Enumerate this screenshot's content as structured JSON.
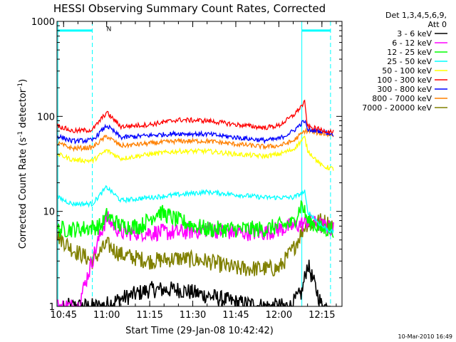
{
  "chart_data": {
    "type": "line",
    "title": "HESSI Observing Summary Count Rates, Corrected",
    "xlabel": "Start Time (29-Jan-08 10:42:42)",
    "ylabel": "Corrected Count Rate (s-1 detector-1)",
    "ylabel_parts": {
      "main": "Corrected Count Rate (s",
      "sup1": "-1",
      "mid": " detector",
      "sup2": "-1",
      "end": ")"
    },
    "y_scale": "log",
    "xlim": [
      "10:42:42",
      "12:22:00"
    ],
    "ylim": [
      1,
      1000
    ],
    "x_ticks": [
      "10:45",
      "11:00",
      "11:15",
      "11:30",
      "11:45",
      "12:00",
      "12:15"
    ],
    "y_ticks": [
      {
        "value": 1,
        "label": "1"
      },
      {
        "value": 10,
        "label": "10"
      },
      {
        "value": 100,
        "label": "100"
      },
      {
        "value": 1000,
        "label": "1000"
      }
    ],
    "grid": false,
    "legend_header": [
      "Det 1,3,4,5,6,9,",
      "Att 0"
    ],
    "series": [
      {
        "name": "3 - 6 keV",
        "color": "#000000",
        "x": [
          "10:46",
          "10:52",
          "10:58",
          "11:05",
          "11:15",
          "11:25",
          "11:35",
          "11:45",
          "11:55",
          "12:04",
          "12:08",
          "12:10",
          "12:15",
          "12:18"
        ],
        "y": [
          1.0,
          1.0,
          1.0,
          1.2,
          1.5,
          1.5,
          1.3,
          1.1,
          1.0,
          1.0,
          1.4,
          2.8,
          1.0,
          1.0
        ]
      },
      {
        "name": "6 - 12 keV",
        "color": "#ff00ff",
        "x": [
          "10:43",
          "10:50",
          "10:58",
          "11:00",
          "11:05",
          "11:15",
          "11:25",
          "11:35",
          "11:45",
          "11:55",
          "12:05",
          "12:09",
          "12:10",
          "12:12",
          "12:15",
          "12:19"
        ],
        "y": [
          1.0,
          1.0,
          6.0,
          8.5,
          6.0,
          6.0,
          6.0,
          6.5,
          6.0,
          6.0,
          7.0,
          7.5,
          8.0,
          7.5,
          7.0,
          6.5
        ]
      },
      {
        "name": "12 - 25 keV",
        "color": "#00ff00",
        "x": [
          "10:43",
          "10:50",
          "10:58",
          "11:00",
          "11:05",
          "11:12",
          "11:18",
          "11:25",
          "11:35",
          "11:45",
          "11:55",
          "12:05",
          "12:08",
          "12:10",
          "12:15",
          "12:19"
        ],
        "y": [
          6.5,
          6.5,
          7.0,
          9.0,
          7.0,
          7.0,
          10.0,
          8.0,
          6.5,
          6.5,
          6.5,
          7.5,
          12.0,
          8.0,
          6.5,
          6.5
        ]
      },
      {
        "name": "25 - 50 keV",
        "color": "#00ffff",
        "x": [
          "10:43",
          "10:48",
          "10:55",
          "11:00",
          "11:05",
          "11:15",
          "11:25",
          "11:35",
          "11:45",
          "11:55",
          "12:00",
          "12:05",
          "12:09",
          "12:10",
          "12:15",
          "12:19"
        ],
        "y": [
          14,
          12,
          12,
          18,
          13,
          14,
          15,
          16,
          15,
          14,
          14,
          14,
          16,
          10,
          7,
          6
        ]
      },
      {
        "name": "50 - 100 keV",
        "color": "#ffff00",
        "x": [
          "10:43",
          "10:48",
          "10:55",
          "11:00",
          "11:05",
          "11:15",
          "11:25",
          "11:35",
          "11:45",
          "11:55",
          "12:00",
          "12:05",
          "12:09",
          "12:10",
          "12:15",
          "12:19"
        ],
        "y": [
          40,
          35,
          34,
          44,
          36,
          40,
          43,
          43,
          40,
          38,
          40,
          45,
          60,
          44,
          30,
          28
        ]
      },
      {
        "name": "100 - 300 keV",
        "color": "#ff0000",
        "x": [
          "10:43",
          "10:48",
          "10:55",
          "11:00",
          "11:05",
          "11:15",
          "11:25",
          "11:35",
          "11:45",
          "11:55",
          "12:00",
          "12:05",
          "12:08",
          "12:09",
          "12:10",
          "12:15",
          "12:19"
        ],
        "y": [
          80,
          70,
          72,
          110,
          78,
          82,
          92,
          90,
          82,
          76,
          80,
          102,
          130,
          140,
          78,
          72,
          68
        ]
      },
      {
        "name": "300 - 800 keV",
        "color": "#0000ff",
        "x": [
          "10:43",
          "10:48",
          "10:55",
          "11:00",
          "11:05",
          "11:15",
          "11:25",
          "11:35",
          "11:45",
          "11:55",
          "12:00",
          "12:05",
          "12:08",
          "12:09",
          "12:10",
          "12:15",
          "12:19"
        ],
        "y": [
          62,
          55,
          56,
          80,
          60,
          63,
          66,
          65,
          60,
          56,
          58,
          70,
          85,
          90,
          72,
          70,
          65
        ]
      },
      {
        "name": "800 - 7000 keV",
        "color": "#ff8000",
        "x": [
          "10:43",
          "10:48",
          "10:55",
          "11:00",
          "11:05",
          "11:15",
          "11:25",
          "11:35",
          "11:45",
          "11:55",
          "12:00",
          "12:05",
          "12:08",
          "12:09",
          "12:10",
          "12:15",
          "12:19"
        ],
        "y": [
          52,
          46,
          47,
          62,
          49,
          52,
          55,
          55,
          51,
          48,
          49,
          55,
          66,
          70,
          70,
          66,
          63
        ]
      },
      {
        "name": "7000 - 20000 keV",
        "color": "#808000",
        "x": [
          "10:43",
          "10:48",
          "10:55",
          "11:00",
          "11:05",
          "11:15",
          "11:25",
          "11:35",
          "11:45",
          "11:55",
          "12:00",
          "12:05",
          "12:09",
          "12:10",
          "12:15",
          "12:19"
        ],
        "y": [
          5.5,
          4.0,
          3.0,
          4.5,
          3.5,
          3.0,
          3.2,
          3.0,
          2.5,
          2.5,
          2.5,
          4.0,
          7.0,
          7.5,
          8.0,
          7.0
        ]
      }
    ],
    "annotations": [
      {
        "text": "N",
        "x": "10:59",
        "y": 850
      }
    ],
    "markers": {
      "color": "#00ffff",
      "solid_lines_x": [
        "10:43",
        "12:08"
      ],
      "dashed_lines_x": [
        "10:55",
        "12:18"
      ],
      "top_bars": [
        {
          "from": "10:43",
          "to": "10:55"
        },
        {
          "from": "12:08",
          "to": "12:18"
        }
      ],
      "top_bar_y": 800
    },
    "footer_stamp": "10-Mar-2010 16:49"
  }
}
